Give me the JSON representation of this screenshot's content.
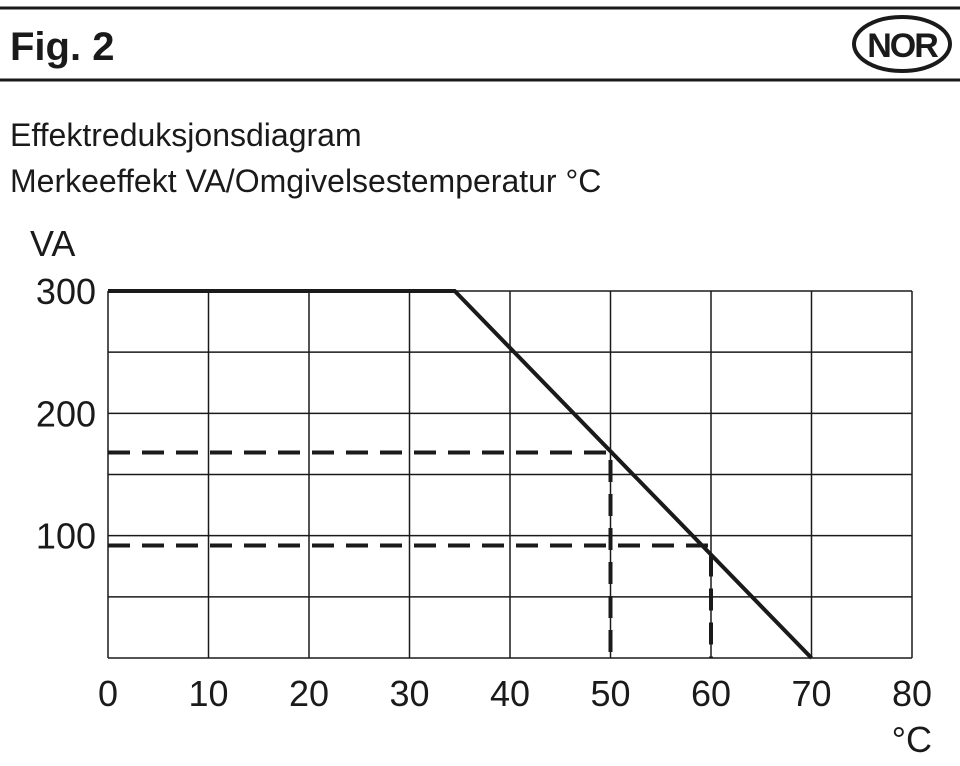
{
  "header": {
    "figure": "Fig. 2",
    "badge": "NOR"
  },
  "chart_data": {
    "type": "line",
    "title": "Effektreduksjonsdiagram",
    "subtitle": "Merkeeffekt VA/Omgivelsestemperatur °C",
    "y_label": "VA",
    "x_label": "°C",
    "x": [
      0,
      34.5,
      70
    ],
    "series": [
      {
        "color": "#1a1a1a",
        "values": [
          300,
          300,
          0
        ]
      }
    ],
    "reference_points": [
      {
        "x": 50,
        "y": 168
      },
      {
        "x": 60,
        "y": 92
      }
    ],
    "xlim": [
      0,
      80
    ],
    "xticks": [
      0,
      10,
      20,
      30,
      40,
      50,
      60,
      70,
      80
    ],
    "ylim": [
      0,
      300
    ],
    "yticks": [
      100,
      200,
      300
    ],
    "ygrid": [
      0,
      50,
      100,
      150,
      200,
      250,
      300
    ],
    "grid": true
  }
}
